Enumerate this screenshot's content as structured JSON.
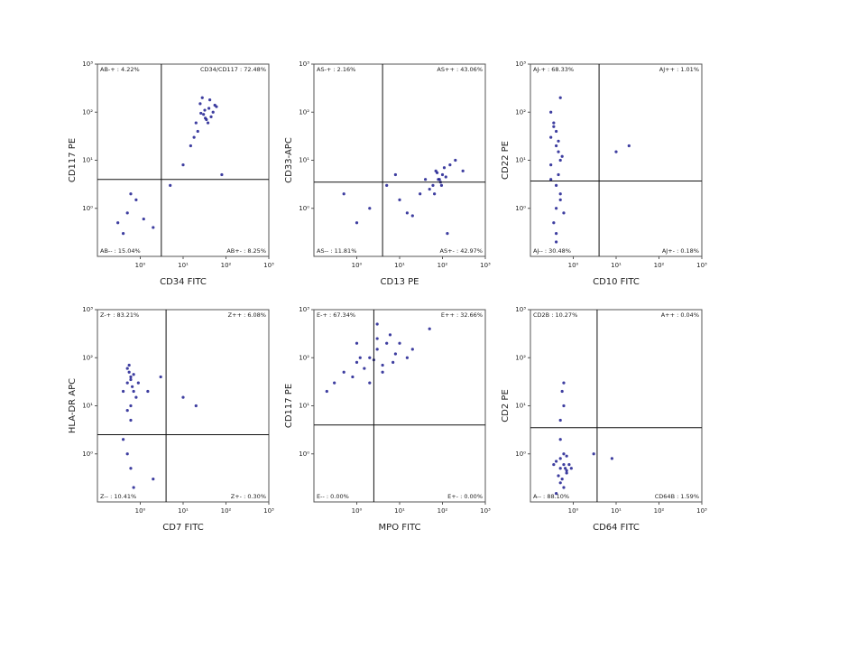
{
  "chart_data": [
    {
      "type": "scatter",
      "x_label": "CD34 FITC",
      "y_label": "CD117 PE",
      "log_scale": true,
      "color": "#1c1c8f",
      "xlim": [
        0.1,
        1000
      ],
      "ylim": [
        0.1,
        1000
      ],
      "xticks": [
        {
          "value": 1,
          "label": "10⁰"
        },
        {
          "value": 10,
          "label": "10¹"
        },
        {
          "value": 100,
          "label": "10²"
        },
        {
          "value": 1000,
          "label": "10³"
        }
      ],
      "yticks": [
        {
          "value": 1,
          "label": "10⁰"
        },
        {
          "value": 10,
          "label": "10¹"
        },
        {
          "value": 100,
          "label": "10²"
        },
        {
          "value": 1000,
          "label": "10³"
        }
      ],
      "gates": {
        "x": 3.1,
        "y": 4
      },
      "quadrant_labels": {
        "upper_left": "AB-+ : 4.22%",
        "upper_right": "CD34/CD117 : 72.48%",
        "lower_left": "AB-- : 15.04%",
        "lower_right": "AB+- : 8.25%"
      },
      "x": [
        20,
        30,
        40,
        25,
        35,
        50,
        28,
        45,
        32,
        22,
        60,
        38,
        18,
        42,
        26,
        15,
        55,
        33,
        0.3,
        0.5,
        0.8,
        0.4,
        1.2,
        0.6,
        2,
        5,
        80,
        10
      ],
      "y": [
        60,
        90,
        120,
        150,
        70,
        100,
        200,
        80,
        110,
        40,
        130,
        60,
        30,
        180,
        95,
        20,
        140,
        75,
        0.5,
        0.8,
        1.5,
        0.3,
        0.6,
        2,
        0.4,
        3,
        5,
        8
      ]
    },
    {
      "type": "scatter",
      "x_label": "CD13 PE",
      "y_label": "CD33-APC",
      "log_scale": true,
      "color": "#1c1c8f",
      "xlim": [
        0.1,
        1000
      ],
      "ylim": [
        0.1,
        1000
      ],
      "xticks": [
        {
          "value": 1,
          "label": "10⁰"
        },
        {
          "value": 10,
          "label": "10¹"
        },
        {
          "value": 100,
          "label": "10²"
        },
        {
          "value": 1000,
          "label": "10³"
        }
      ],
      "yticks": [
        {
          "value": 1,
          "label": "10⁰"
        },
        {
          "value": 10,
          "label": "10¹"
        },
        {
          "value": 100,
          "label": "10²"
        },
        {
          "value": 1000,
          "label": "10³"
        }
      ],
      "gates": {
        "x": 4,
        "y": 3.5
      },
      "quadrant_labels": {
        "upper_left": "AS-+ : 2.16%",
        "upper_right": "AS++ : 43.06%",
        "lower_left": "AS-- : 11.81%",
        "lower_right": "AS+- : 42.97%"
      },
      "x": [
        60,
        80,
        100,
        70,
        90,
        120,
        50,
        110,
        85,
        75,
        150,
        65,
        95,
        40,
        200,
        30,
        10,
        5,
        2,
        1,
        0.5,
        20,
        130,
        300,
        8,
        15
      ],
      "y": [
        3,
        4,
        5,
        6,
        3.5,
        4.5,
        2.5,
        7,
        4,
        5.5,
        8,
        2,
        3,
        4,
        10,
        2,
        1.5,
        3,
        1,
        0.5,
        2,
        0.7,
        0.3,
        6,
        5,
        0.8
      ]
    },
    {
      "type": "scatter",
      "x_label": "CD10 FITC",
      "y_label": "CD22 PE",
      "log_scale": true,
      "color": "#1c1c8f",
      "xlim": [
        0.1,
        1000
      ],
      "ylim": [
        0.1,
        1000
      ],
      "xticks": [
        {
          "value": 1,
          "label": "10⁰"
        },
        {
          "value": 10,
          "label": "10¹"
        },
        {
          "value": 100,
          "label": "10²"
        },
        {
          "value": 1000,
          "label": "10³"
        }
      ],
      "yticks": [
        {
          "value": 1,
          "label": "10⁰"
        },
        {
          "value": 10,
          "label": "10¹"
        },
        {
          "value": 100,
          "label": "10²"
        },
        {
          "value": 1000,
          "label": "10³"
        }
      ],
      "gates": {
        "x": 4,
        "y": 3.7
      },
      "quadrant_labels": {
        "upper_left": "AJ-+ : 68.33%",
        "upper_right": "AJ++ : 1.01%",
        "lower_left": "AJ-- : 30.48%",
        "lower_right": "AJ+- : 0.18%"
      },
      "x": [
        0.3,
        0.4,
        0.5,
        0.35,
        0.45,
        0.3,
        0.4,
        0.5,
        0.6,
        0.35,
        0.45,
        0.4,
        0.3,
        0.5,
        0.4,
        0.35,
        0.45,
        0.55,
        0.4,
        0.3,
        10,
        20,
        0.5,
        0.4
      ],
      "y": [
        30,
        20,
        10,
        50,
        5,
        100,
        3,
        1.5,
        0.8,
        0.5,
        15,
        40,
        8,
        2,
        0.3,
        60,
        25,
        12,
        1,
        4,
        15,
        20,
        200,
        0.2
      ]
    },
    {
      "type": "scatter",
      "x_label": "CD7 FITC",
      "y_label": "HLA-DR APC",
      "log_scale": true,
      "color": "#1c1c8f",
      "xlim": [
        0.1,
        1000
      ],
      "ylim": [
        0.1,
        1000
      ],
      "xticks": [
        {
          "value": 1,
          "label": "10⁰"
        },
        {
          "value": 10,
          "label": "10¹"
        },
        {
          "value": 100,
          "label": "10²"
        },
        {
          "value": 1000,
          "label": "10³"
        }
      ],
      "yticks": [
        {
          "value": 1,
          "label": "10⁰"
        },
        {
          "value": 10,
          "label": "10¹"
        },
        {
          "value": 100,
          "label": "10²"
        },
        {
          "value": 1000,
          "label": "10³"
        }
      ],
      "gates": {
        "x": 4,
        "y": 2.5
      },
      "quadrant_labels": {
        "upper_left": "Z-+ : 83.21%",
        "upper_right": "Z++ : 6.08%",
        "lower_left": "Z-- : 10.41%",
        "lower_right": "Z+- : 0.30%"
      },
      "x": [
        0.5,
        0.6,
        0.7,
        0.55,
        0.65,
        0.5,
        0.8,
        0.6,
        0.4,
        0.7,
        0.6,
        0.5,
        0.9,
        0.55,
        0.6,
        1.5,
        3,
        10,
        20,
        0.5,
        0.6,
        0.7,
        0.4,
        2
      ],
      "y": [
        30,
        40,
        20,
        50,
        25,
        60,
        15,
        35,
        20,
        45,
        10,
        8,
        30,
        70,
        5,
        20,
        40,
        15,
        10,
        1,
        0.5,
        0.2,
        2,
        0.3
      ]
    },
    {
      "type": "scatter",
      "x_label": "MPO FITC",
      "y_label": "CD117 PE",
      "log_scale": true,
      "color": "#1c1c8f",
      "xlim": [
        0.1,
        1000
      ],
      "ylim": [
        0.1,
        1000
      ],
      "xticks": [
        {
          "value": 1,
          "label": "10⁰"
        },
        {
          "value": 10,
          "label": "10¹"
        },
        {
          "value": 100,
          "label": "10²"
        },
        {
          "value": 1000,
          "label": "10³"
        }
      ],
      "yticks": [
        {
          "value": 1,
          "label": "10⁰"
        },
        {
          "value": 10,
          "label": "10¹"
        },
        {
          "value": 100,
          "label": "10²"
        },
        {
          "value": 1000,
          "label": "10³"
        }
      ],
      "gates": {
        "x": 2.5,
        "y": 4
      },
      "quadrant_labels": {
        "upper_left": "E-+ : 67.34%",
        "upper_right": "E++ : 32.66%",
        "lower_left": "E-- : 0.00%",
        "lower_right": "E+- : 0.00%"
      },
      "x": [
        0.3,
        0.5,
        1,
        2,
        3,
        5,
        8,
        1.5,
        2.5,
        4,
        6,
        0.8,
        1.2,
        3,
        10,
        20,
        50,
        0.2,
        2,
        4,
        7,
        1,
        3,
        15
      ],
      "y": [
        30,
        50,
        80,
        100,
        150,
        200,
        120,
        60,
        90,
        70,
        300,
        40,
        100,
        250,
        200,
        150,
        400,
        20,
        30,
        50,
        80,
        200,
        500,
        100
      ]
    },
    {
      "type": "scatter",
      "x_label": "CD64 FITC",
      "y_label": "CD2 PE",
      "log_scale": true,
      "color": "#1c1c8f",
      "xlim": [
        0.1,
        1000
      ],
      "ylim": [
        0.1,
        1000
      ],
      "xticks": [
        {
          "value": 1,
          "label": "10⁰"
        },
        {
          "value": 10,
          "label": "10¹"
        },
        {
          "value": 100,
          "label": "10²"
        },
        {
          "value": 1000,
          "label": "10³"
        }
      ],
      "yticks": [
        {
          "value": 1,
          "label": "10⁰"
        },
        {
          "value": 10,
          "label": "10¹"
        },
        {
          "value": 100,
          "label": "10²"
        },
        {
          "value": 1000,
          "label": "10³"
        }
      ],
      "gates": {
        "x": 3.6,
        "y": 3.5
      },
      "quadrant_labels": {
        "upper_left": "CD2B : 10.27%",
        "upper_right": "A++ : 0.04%",
        "lower_left": "A-- : 88.10%",
        "lower_right": "CD64B : 1.59%"
      },
      "x": [
        0.5,
        0.6,
        0.7,
        0.4,
        0.55,
        0.65,
        0.5,
        0.8,
        0.6,
        0.45,
        0.7,
        0.5,
        0.6,
        0.9,
        0.35,
        0.5,
        0.6,
        0.55,
        0.6,
        0.5,
        3,
        8,
        0.4,
        0.7
      ],
      "y": [
        0.5,
        0.6,
        0.4,
        0.7,
        0.3,
        0.5,
        0.8,
        0.6,
        1,
        0.35,
        0.45,
        0.25,
        0.2,
        0.5,
        0.6,
        5,
        10,
        20,
        30,
        2,
        1,
        0.8,
        0.15,
        0.9
      ]
    }
  ]
}
